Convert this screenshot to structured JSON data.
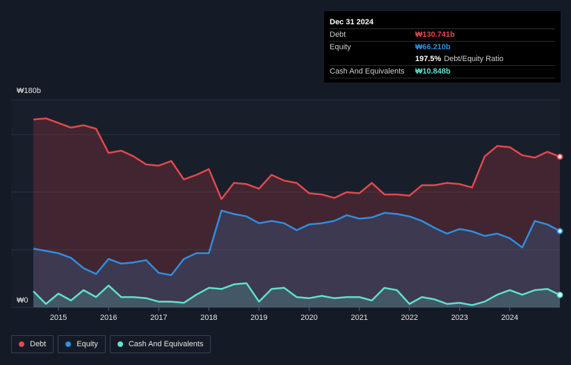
{
  "colors": {
    "debt": "#e5484d",
    "equity": "#2f8fe3",
    "cash": "#5ee3cf"
  },
  "tooltip": {
    "date": "Dec 31 2024",
    "rows": [
      {
        "label": "Debt",
        "value": "₩130.741b",
        "color": "#e5484d"
      },
      {
        "label": "Equity",
        "value": "₩66.210b",
        "color": "#2f8fe3"
      },
      {
        "label": "",
        "value": "197.5%",
        "extra": "Debt/Equity Ratio",
        "color": "#ffffff"
      },
      {
        "label": "Cash And Equivalents",
        "value": "₩10.848b",
        "color": "#5ee3cf"
      }
    ]
  },
  "legend": [
    {
      "label": "Debt",
      "icon": "debt-dot-icon",
      "color": "#e5484d"
    },
    {
      "label": "Equity",
      "icon": "equity-dot-icon",
      "color": "#2f8fe3"
    },
    {
      "label": "Cash And Equivalents",
      "icon": "cash-dot-icon",
      "color": "#5ee3cf"
    }
  ],
  "chart_data": {
    "type": "area",
    "title": "",
    "xlabel": "",
    "ylabel": "",
    "y_max_label": "₩180b",
    "y_min_label": "₩0",
    "ylim": [
      0,
      180
    ],
    "xlim": [
      2014.5,
      2025.0
    ],
    "x_ticks": [
      2015,
      2016,
      2017,
      2018,
      2019,
      2020,
      2021,
      2022,
      2023,
      2024
    ],
    "grid": true,
    "legend_position": "bottom-left",
    "series": [
      {
        "name": "Debt",
        "points": [
          [
            2014.5,
            163
          ],
          [
            2014.75,
            164
          ],
          [
            2015.0,
            160
          ],
          [
            2015.25,
            156
          ],
          [
            2015.5,
            158
          ],
          [
            2015.75,
            155
          ],
          [
            2016.0,
            134
          ],
          [
            2016.25,
            136
          ],
          [
            2016.5,
            131
          ],
          [
            2016.75,
            124
          ],
          [
            2017.0,
            123
          ],
          [
            2017.25,
            127
          ],
          [
            2017.5,
            111
          ],
          [
            2017.75,
            115
          ],
          [
            2018.0,
            120
          ],
          [
            2018.25,
            94
          ],
          [
            2018.5,
            108
          ],
          [
            2018.75,
            107
          ],
          [
            2019.0,
            103
          ],
          [
            2019.25,
            115
          ],
          [
            2019.5,
            110
          ],
          [
            2019.75,
            108
          ],
          [
            2020.0,
            99
          ],
          [
            2020.25,
            98
          ],
          [
            2020.5,
            95
          ],
          [
            2020.75,
            100
          ],
          [
            2021.0,
            99
          ],
          [
            2021.25,
            108
          ],
          [
            2021.5,
            98
          ],
          [
            2021.75,
            98
          ],
          [
            2022.0,
            97
          ],
          [
            2022.25,
            106
          ],
          [
            2022.5,
            106
          ],
          [
            2022.75,
            108
          ],
          [
            2023.0,
            107
          ],
          [
            2023.25,
            104
          ],
          [
            2023.5,
            131
          ],
          [
            2023.75,
            140
          ],
          [
            2024.0,
            139
          ],
          [
            2024.25,
            132
          ],
          [
            2024.5,
            130
          ],
          [
            2024.75,
            135
          ],
          [
            2025.0,
            130.741
          ]
        ]
      },
      {
        "name": "Equity",
        "points": [
          [
            2014.5,
            51
          ],
          [
            2014.75,
            49
          ],
          [
            2015.0,
            47
          ],
          [
            2015.25,
            43
          ],
          [
            2015.5,
            34
          ],
          [
            2015.75,
            29
          ],
          [
            2016.0,
            42
          ],
          [
            2016.25,
            38
          ],
          [
            2016.5,
            39
          ],
          [
            2016.75,
            41
          ],
          [
            2017.0,
            30
          ],
          [
            2017.25,
            28
          ],
          [
            2017.5,
            42
          ],
          [
            2017.75,
            47
          ],
          [
            2018.0,
            47
          ],
          [
            2018.25,
            84
          ],
          [
            2018.5,
            81
          ],
          [
            2018.75,
            79
          ],
          [
            2019.0,
            73
          ],
          [
            2019.25,
            75
          ],
          [
            2019.5,
            73
          ],
          [
            2019.75,
            67
          ],
          [
            2020.0,
            72
          ],
          [
            2020.25,
            73
          ],
          [
            2020.5,
            75
          ],
          [
            2020.75,
            80
          ],
          [
            2021.0,
            77
          ],
          [
            2021.25,
            78
          ],
          [
            2021.5,
            82
          ],
          [
            2021.75,
            81
          ],
          [
            2022.0,
            79
          ],
          [
            2022.25,
            75
          ],
          [
            2022.5,
            69
          ],
          [
            2022.75,
            64
          ],
          [
            2023.0,
            68
          ],
          [
            2023.25,
            66
          ],
          [
            2023.5,
            62
          ],
          [
            2023.75,
            64
          ],
          [
            2024.0,
            60
          ],
          [
            2024.25,
            52
          ],
          [
            2024.5,
            75
          ],
          [
            2024.75,
            72
          ],
          [
            2025.0,
            66.21
          ]
        ]
      },
      {
        "name": "Cash And Equivalents",
        "points": [
          [
            2014.5,
            14
          ],
          [
            2014.75,
            3
          ],
          [
            2015.0,
            12
          ],
          [
            2015.25,
            6
          ],
          [
            2015.5,
            15
          ],
          [
            2015.75,
            9
          ],
          [
            2016.0,
            19
          ],
          [
            2016.25,
            9
          ],
          [
            2016.5,
            9
          ],
          [
            2016.75,
            8
          ],
          [
            2017.0,
            5
          ],
          [
            2017.25,
            5
          ],
          [
            2017.5,
            4
          ],
          [
            2017.75,
            11
          ],
          [
            2018.0,
            17
          ],
          [
            2018.25,
            16
          ],
          [
            2018.5,
            20
          ],
          [
            2018.75,
            21
          ],
          [
            2019.0,
            5
          ],
          [
            2019.25,
            16
          ],
          [
            2019.5,
            17
          ],
          [
            2019.75,
            9
          ],
          [
            2020.0,
            8
          ],
          [
            2020.25,
            10
          ],
          [
            2020.5,
            8
          ],
          [
            2020.75,
            9
          ],
          [
            2021.0,
            9
          ],
          [
            2021.25,
            6
          ],
          [
            2021.5,
            17
          ],
          [
            2021.75,
            15
          ],
          [
            2022.0,
            3
          ],
          [
            2022.25,
            9
          ],
          [
            2022.5,
            7
          ],
          [
            2022.75,
            3
          ],
          [
            2023.0,
            4
          ],
          [
            2023.25,
            2
          ],
          [
            2023.5,
            5
          ],
          [
            2023.75,
            11
          ],
          [
            2024.0,
            15
          ],
          [
            2024.25,
            11
          ],
          [
            2024.5,
            15
          ],
          [
            2024.75,
            16
          ],
          [
            2025.0,
            10.848
          ]
        ]
      }
    ]
  }
}
